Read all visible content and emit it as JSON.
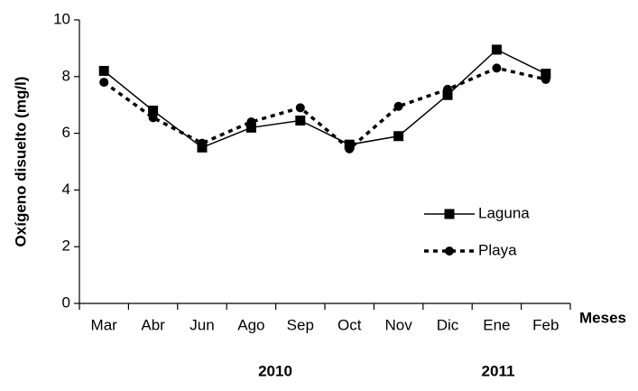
{
  "chart_data": {
    "type": "line",
    "x_label": "Meses",
    "y_label": "Oxígeno disuelto (mg/l)",
    "categories": [
      "Mar",
      "Abr",
      "Jun",
      "Ago",
      "Sep",
      "Oct",
      "Nov",
      "Dic",
      "Ene",
      "Feb"
    ],
    "year_labels": [
      "2010",
      "2011"
    ],
    "series": [
      {
        "name": "Laguna",
        "color": "#000000",
        "marker": "square",
        "dash": "solid",
        "values": [
          8.2,
          6.8,
          5.5,
          6.2,
          6.45,
          5.6,
          5.9,
          7.35,
          8.95,
          8.1
        ]
      },
      {
        "name": "Playa",
        "color": "#000000",
        "marker": "circle",
        "dash": "dotted",
        "values": [
          7.8,
          6.55,
          5.65,
          6.4,
          6.9,
          5.45,
          6.95,
          7.55,
          8.3,
          7.9
        ]
      }
    ],
    "ylim": [
      0,
      10
    ],
    "yticks": [
      0,
      2,
      4,
      6,
      8,
      10
    ],
    "grid": false,
    "legend": "right"
  }
}
